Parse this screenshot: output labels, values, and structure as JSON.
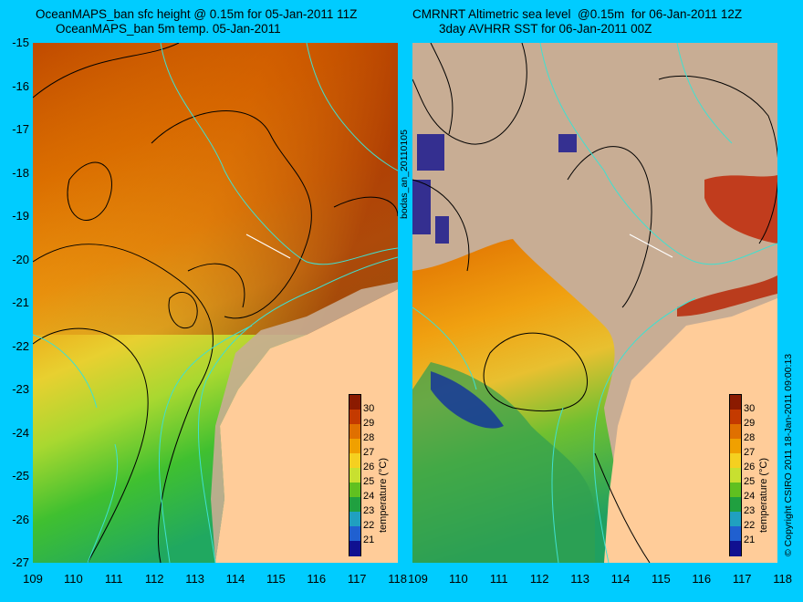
{
  "left_panel": {
    "title_line1": "OceanMAPS_ban sfc height @ 0.15m for 05-Jan-2011 11Z",
    "title_line2": "OceanMAPS_ban 5m temp. 05-Jan-2011"
  },
  "right_panel": {
    "title_line1": "CMRNRT Altimetric sea level  @0.15m  for 06-Jan-2011 12Z",
    "title_line2": "3day AVHRR SST for 06-Jan-2011 00Z"
  },
  "y_ticks": [
    "-15",
    "-16",
    "-17",
    "-18",
    "-19",
    "-20",
    "-21",
    "-22",
    "-23",
    "-24",
    "-25",
    "-26",
    "-27"
  ],
  "x_ticks": [
    "109",
    "110",
    "111",
    "112",
    "113",
    "114",
    "115",
    "116",
    "117",
    "118"
  ],
  "colorbar": {
    "ticks": [
      "30",
      "29",
      "28",
      "27",
      "26",
      "25",
      "24",
      "23",
      "22",
      "21"
    ],
    "colors": [
      "#8b1a00",
      "#c43a00",
      "#e07000",
      "#f0a000",
      "#f5d020",
      "#c8e030",
      "#60c020",
      "#20a040",
      "#20a0c0",
      "#2060d0",
      "#101090"
    ],
    "title": "temperature (°C)"
  },
  "side_text": {
    "mid": "bodas_an_20110105",
    "right": "© Copyright CSIRO 2011   18-Jan-2011 09:00:13"
  },
  "map_colors": {
    "background": "#00ccff",
    "land": "#ffcc99",
    "no_data": "#c8ad94",
    "coast_contour": "#40e0d0"
  }
}
